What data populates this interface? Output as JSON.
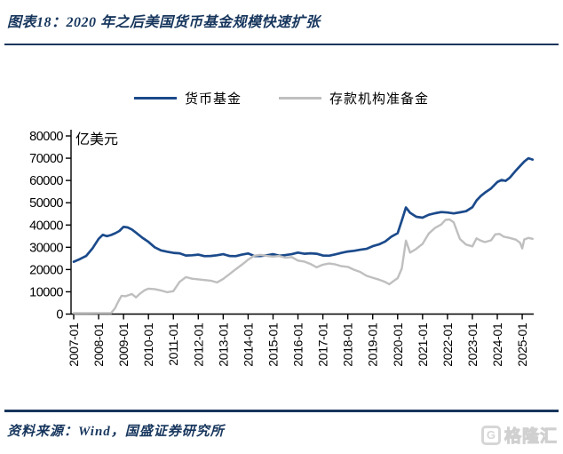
{
  "header": {
    "title": "图表18：2020 年之后美国货币基金规模快速扩张"
  },
  "legend": {
    "items": [
      {
        "label": "货币基金"
      },
      {
        "label": "存款机构准备金"
      }
    ]
  },
  "footer": {
    "source": "资料来源：Wind，国盛证券研究所",
    "watermark": "格隆汇",
    "watermark_icon": "G"
  },
  "colors": {
    "accent_navy": "#17365D",
    "mmf_line": "#1B4A8B",
    "reserve_line": "#BFBFBF",
    "axis": "#000000",
    "watermark_gray": "#D6D6D6"
  },
  "chart_data": {
    "type": "line",
    "title": "2020 年之后美国货币基金规模快速扩张",
    "unit_label": "亿美元",
    "xlabel": "",
    "ylabel": "亿美元",
    "ylim": [
      0,
      80000
    ],
    "y_ticks": [
      0,
      10000,
      20000,
      30000,
      40000,
      50000,
      60000,
      70000,
      80000
    ],
    "x_tick_labels": [
      "2007-01",
      "2008-01",
      "2009-01",
      "2010-01",
      "2011-01",
      "2012-01",
      "2013-01",
      "2014-01",
      "2015-01",
      "2016-01",
      "2017-01",
      "2018-01",
      "2019-01",
      "2020-01",
      "2021-01",
      "2022-01",
      "2023-01",
      "2024-01",
      "2025-01"
    ],
    "grid": false,
    "legend_position": "top",
    "series": [
      {
        "name": "货币基金",
        "color": "#1B4A8B",
        "points": [
          [
            "2007-01",
            23500
          ],
          [
            "2007-04",
            24700
          ],
          [
            "2007-07",
            26100
          ],
          [
            "2007-10",
            29400
          ],
          [
            "2008-01",
            33800
          ],
          [
            "2008-03",
            35600
          ],
          [
            "2008-05",
            35000
          ],
          [
            "2008-07",
            35500
          ],
          [
            "2008-09",
            36300
          ],
          [
            "2008-11",
            37300
          ],
          [
            "2009-01",
            39200
          ],
          [
            "2009-03",
            38900
          ],
          [
            "2009-05",
            38000
          ],
          [
            "2009-07",
            36600
          ],
          [
            "2009-10",
            34300
          ],
          [
            "2010-01",
            32400
          ],
          [
            "2010-04",
            30000
          ],
          [
            "2010-07",
            28600
          ],
          [
            "2010-10",
            28000
          ],
          [
            "2011-01",
            27500
          ],
          [
            "2011-04",
            27300
          ],
          [
            "2011-07",
            26300
          ],
          [
            "2011-10",
            26400
          ],
          [
            "2012-01",
            26700
          ],
          [
            "2012-04",
            26000
          ],
          [
            "2012-07",
            26100
          ],
          [
            "2012-10",
            26400
          ],
          [
            "2013-01",
            26900
          ],
          [
            "2013-04",
            26100
          ],
          [
            "2013-07",
            26000
          ],
          [
            "2013-10",
            26700
          ],
          [
            "2014-01",
            27200
          ],
          [
            "2014-04",
            26100
          ],
          [
            "2014-07",
            26100
          ],
          [
            "2014-10",
            26400
          ],
          [
            "2015-01",
            26900
          ],
          [
            "2015-04",
            26200
          ],
          [
            "2015-07",
            26500
          ],
          [
            "2015-10",
            26900
          ],
          [
            "2016-01",
            27600
          ],
          [
            "2016-04",
            27100
          ],
          [
            "2016-07",
            27300
          ],
          [
            "2016-10",
            27100
          ],
          [
            "2017-01",
            26300
          ],
          [
            "2017-04",
            26200
          ],
          [
            "2017-07",
            26800
          ],
          [
            "2017-10",
            27500
          ],
          [
            "2018-01",
            28100
          ],
          [
            "2018-04",
            28400
          ],
          [
            "2018-07",
            28900
          ],
          [
            "2018-10",
            29300
          ],
          [
            "2019-01",
            30500
          ],
          [
            "2019-04",
            31300
          ],
          [
            "2019-07",
            32600
          ],
          [
            "2019-10",
            34800
          ],
          [
            "2020-01",
            36300
          ],
          [
            "2020-03",
            42000
          ],
          [
            "2020-05",
            47900
          ],
          [
            "2020-07",
            45500
          ],
          [
            "2020-10",
            43700
          ],
          [
            "2021-01",
            43300
          ],
          [
            "2021-04",
            44600
          ],
          [
            "2021-07",
            45300
          ],
          [
            "2021-10",
            45800
          ],
          [
            "2022-01",
            45600
          ],
          [
            "2022-04",
            45200
          ],
          [
            "2022-07",
            45700
          ],
          [
            "2022-10",
            46200
          ],
          [
            "2023-01",
            48000
          ],
          [
            "2023-03",
            51000
          ],
          [
            "2023-05",
            53000
          ],
          [
            "2023-07",
            54500
          ],
          [
            "2023-10",
            56400
          ],
          [
            "2024-01",
            59300
          ],
          [
            "2024-03",
            60200
          ],
          [
            "2024-05",
            59800
          ],
          [
            "2024-07",
            61200
          ],
          [
            "2024-10",
            64500
          ],
          [
            "2024-12",
            66500
          ],
          [
            "2025-02",
            68500
          ],
          [
            "2025-04",
            70000
          ],
          [
            "2025-06",
            69400
          ]
        ]
      },
      {
        "name": "存款机构准备金",
        "color": "#BFBFBF",
        "points": [
          [
            "2007-01",
            400
          ],
          [
            "2007-07",
            400
          ],
          [
            "2008-01",
            420
          ],
          [
            "2008-07",
            450
          ],
          [
            "2008-09",
            2800
          ],
          [
            "2008-10",
            4800
          ],
          [
            "2008-12",
            8200
          ],
          [
            "2009-02",
            8000
          ],
          [
            "2009-05",
            9000
          ],
          [
            "2009-07",
            7500
          ],
          [
            "2009-09",
            9200
          ],
          [
            "2009-11",
            10600
          ],
          [
            "2010-01",
            11400
          ],
          [
            "2010-04",
            11200
          ],
          [
            "2010-07",
            10600
          ],
          [
            "2010-10",
            9800
          ],
          [
            "2011-01",
            10300
          ],
          [
            "2011-04",
            14500
          ],
          [
            "2011-07",
            16600
          ],
          [
            "2011-10",
            15900
          ],
          [
            "2012-01",
            15600
          ],
          [
            "2012-04",
            15300
          ],
          [
            "2012-07",
            15000
          ],
          [
            "2012-10",
            14200
          ],
          [
            "2013-01",
            15800
          ],
          [
            "2013-04",
            17900
          ],
          [
            "2013-07",
            20100
          ],
          [
            "2013-10",
            22200
          ],
          [
            "2014-01",
            24400
          ],
          [
            "2014-04",
            26200
          ],
          [
            "2014-07",
            26600
          ],
          [
            "2014-10",
            26100
          ],
          [
            "2015-01",
            25800
          ],
          [
            "2015-04",
            26100
          ],
          [
            "2015-07",
            25300
          ],
          [
            "2015-10",
            25600
          ],
          [
            "2016-01",
            24000
          ],
          [
            "2016-04",
            23600
          ],
          [
            "2016-07",
            22500
          ],
          [
            "2016-10",
            21000
          ],
          [
            "2017-01",
            22200
          ],
          [
            "2017-04",
            22700
          ],
          [
            "2017-07",
            22300
          ],
          [
            "2017-10",
            21500
          ],
          [
            "2018-01",
            21200
          ],
          [
            "2018-04",
            19900
          ],
          [
            "2018-07",
            18900
          ],
          [
            "2018-10",
            17200
          ],
          [
            "2019-01",
            16300
          ],
          [
            "2019-04",
            15500
          ],
          [
            "2019-07",
            14400
          ],
          [
            "2019-09",
            13400
          ],
          [
            "2019-12",
            15500
          ],
          [
            "2020-01",
            16100
          ],
          [
            "2020-03",
            20500
          ],
          [
            "2020-05",
            33000
          ],
          [
            "2020-07",
            27600
          ],
          [
            "2020-10",
            29300
          ],
          [
            "2021-01",
            31500
          ],
          [
            "2021-04",
            36200
          ],
          [
            "2021-07",
            38700
          ],
          [
            "2021-10",
            40200
          ],
          [
            "2021-12",
            42300
          ],
          [
            "2022-02",
            42500
          ],
          [
            "2022-04",
            41200
          ],
          [
            "2022-07",
            33700
          ],
          [
            "2022-10",
            31200
          ],
          [
            "2023-01",
            30400
          ],
          [
            "2023-03",
            34000
          ],
          [
            "2023-05",
            33000
          ],
          [
            "2023-07",
            32300
          ],
          [
            "2023-10",
            33100
          ],
          [
            "2023-12",
            35800
          ],
          [
            "2024-02",
            36000
          ],
          [
            "2024-04",
            34800
          ],
          [
            "2024-07",
            34200
          ],
          [
            "2024-10",
            33400
          ],
          [
            "2024-12",
            32000
          ],
          [
            "2025-01",
            29500
          ],
          [
            "2025-02",
            33500
          ],
          [
            "2025-04",
            34200
          ],
          [
            "2025-06",
            33800
          ]
        ]
      }
    ]
  }
}
